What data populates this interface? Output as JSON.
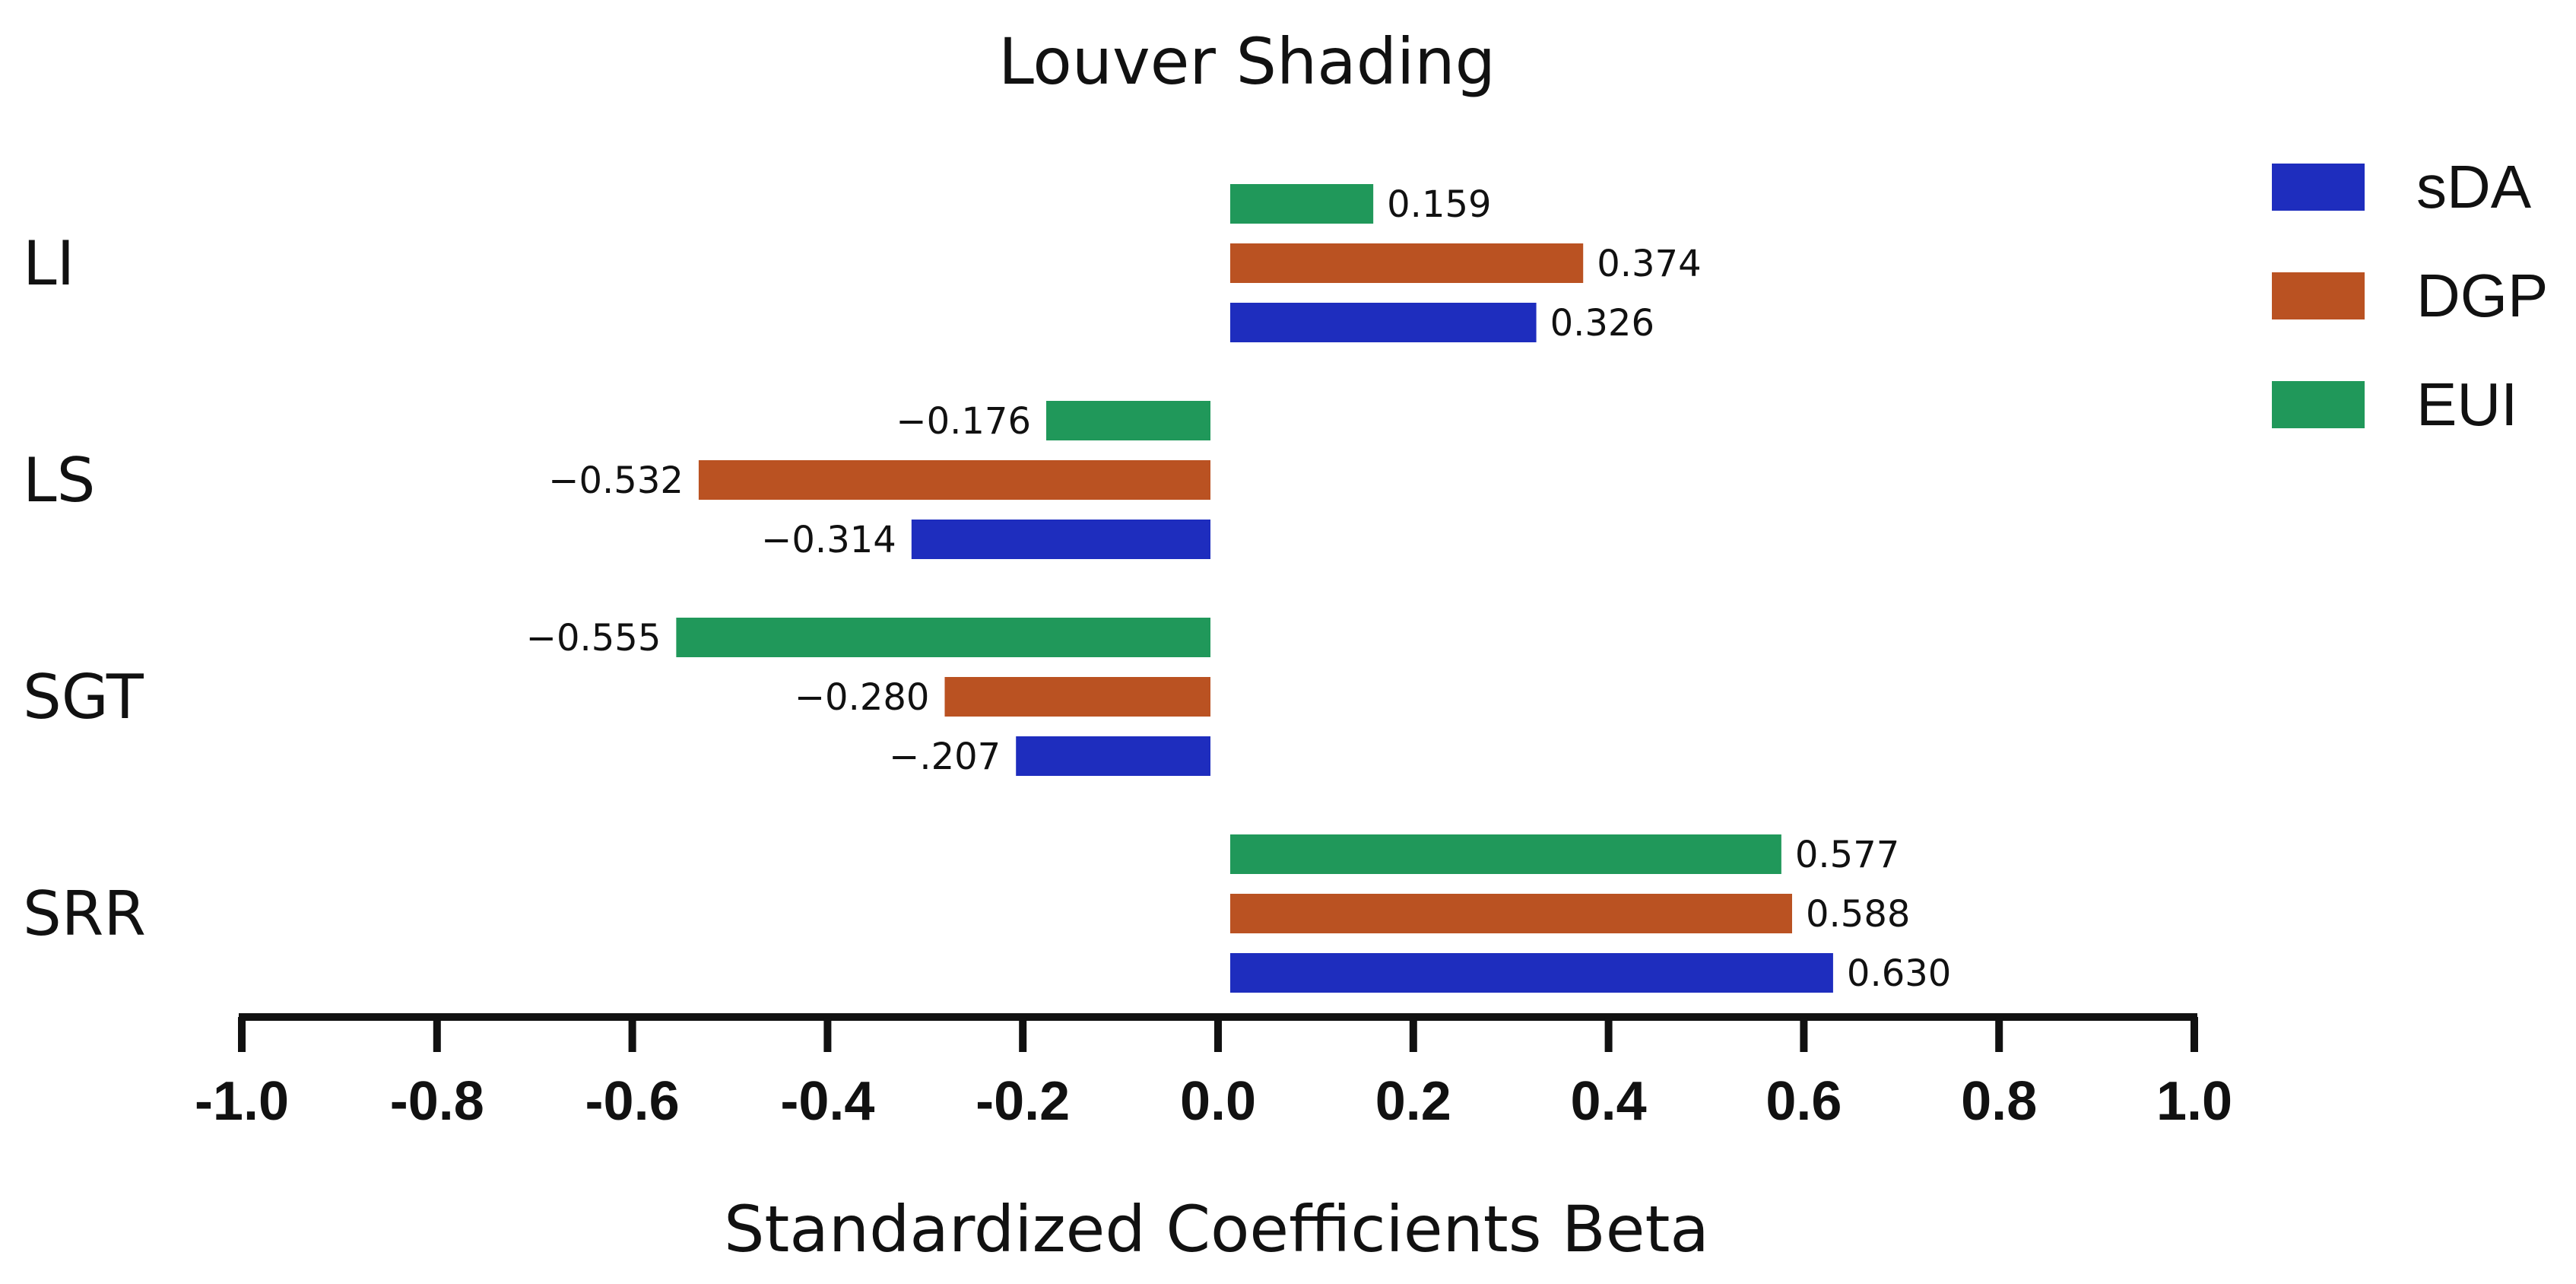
{
  "chart_data": {
    "type": "bar",
    "orientation": "horizontal",
    "title": "Louver Shading",
    "xlabel": "Standardized Coefficients Beta",
    "ylabel": "",
    "xlim": [
      -1.0,
      1.0
    ],
    "xticks": [
      "-1.0",
      "-0.8",
      "-0.6",
      "-0.4",
      "-0.2",
      "0.0",
      "0.2",
      "0.4",
      "0.6",
      "0.8",
      "1.0"
    ],
    "grid": false,
    "legend_position": "top-right",
    "categories": [
      "LI",
      "LS",
      "SGT",
      "SRR"
    ],
    "series": [
      {
        "name": "EUI",
        "color": "#20985A",
        "values": [
          0.159,
          -0.176,
          -0.555,
          0.577
        ],
        "labels": [
          "0.159",
          "−0.176",
          "−0.555",
          "0.577"
        ]
      },
      {
        "name": "DGP",
        "color": "#BA5222",
        "values": [
          0.374,
          -0.532,
          -0.28,
          0.588
        ],
        "labels": [
          "0.374",
          "−0.532",
          "−0.280",
          "0.588"
        ]
      },
      {
        "name": "sDA",
        "color": "#1E2DBE",
        "values": [
          0.326,
          -0.314,
          -0.207,
          0.63
        ],
        "labels": [
          "0.326",
          "−0.314",
          "−.207",
          "0.630"
        ]
      }
    ],
    "legend": [
      "sDA",
      "DGP",
      "EUI"
    ]
  }
}
